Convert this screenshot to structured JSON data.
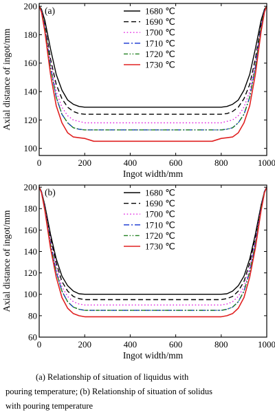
{
  "chart_data": [
    {
      "type": "line",
      "panel_label": "(a)",
      "xlabel": "Ingot width/mm",
      "ylabel": "Axial distance of ingot/mm",
      "xlim": [
        0,
        1000
      ],
      "ylim": [
        95,
        202
      ],
      "xticks": [
        0,
        200,
        400,
        600,
        800,
        1000
      ],
      "yticks": [
        100,
        120,
        140,
        160,
        180,
        200
      ],
      "legend_position": "top-right",
      "series": [
        {
          "name": "1680 ℃",
          "color": "#000000",
          "dash": "solid",
          "x": [
            0,
            10,
            25,
            50,
            75,
            100,
            125,
            150,
            175,
            200,
            300,
            400,
            500,
            600,
            700,
            800,
            825,
            850,
            875,
            900,
            925,
            950,
            975,
            990,
            1000
          ],
          "y": [
            200,
            198,
            190,
            170,
            152,
            141,
            134,
            131,
            129.5,
            129,
            129,
            129,
            129,
            129,
            129,
            129,
            129.5,
            131,
            134,
            141,
            152,
            170,
            190,
            198,
            200
          ]
        },
        {
          "name": "1690 ℃",
          "color": "#000000",
          "dash": "dashed",
          "x": [
            0,
            10,
            25,
            50,
            75,
            100,
            125,
            150,
            175,
            200,
            300,
            400,
            500,
            600,
            700,
            800,
            825,
            850,
            875,
            900,
            925,
            950,
            975,
            990,
            1000
          ],
          "y": [
            200,
            197,
            187,
            163,
            145,
            135,
            129,
            126,
            124.5,
            124,
            124,
            124,
            124,
            124,
            124,
            124,
            124.5,
            126,
            129,
            135,
            145,
            163,
            187,
            197,
            200
          ]
        },
        {
          "name": "1700 ℃",
          "color": "#e020e0",
          "dash": "dotted",
          "x": [
            0,
            10,
            25,
            50,
            75,
            100,
            125,
            150,
            175,
            200,
            300,
            400,
            500,
            600,
            700,
            800,
            825,
            850,
            875,
            900,
            925,
            950,
            975,
            990,
            1000
          ],
          "y": [
            200,
            197,
            186,
            160,
            140,
            129,
            123,
            120,
            119,
            118,
            118,
            118,
            118,
            118,
            118,
            118,
            119,
            120,
            123,
            129,
            140,
            160,
            186,
            197,
            200
          ]
        },
        {
          "name": "1710 ℃",
          "color": "#1030d0",
          "dash": "dashdot",
          "x": [
            0,
            10,
            25,
            50,
            75,
            100,
            125,
            150,
            175,
            200,
            300,
            400,
            500,
            600,
            700,
            800,
            825,
            850,
            875,
            900,
            925,
            950,
            975,
            990,
            1000
          ],
          "y": [
            200,
            197,
            185,
            157,
            136,
            124,
            118,
            114.5,
            113.5,
            113,
            113,
            113,
            113,
            113,
            113,
            113,
            113.5,
            114.5,
            118,
            124,
            136,
            157,
            185,
            197,
            200
          ]
        },
        {
          "name": "1720 ℃",
          "color": "#208020",
          "dash": "dashdotdot",
          "x": [
            0,
            10,
            25,
            50,
            75,
            100,
            125,
            150,
            175,
            200,
            300,
            400,
            500,
            600,
            700,
            800,
            825,
            850,
            875,
            900,
            925,
            950,
            975,
            990,
            1000
          ],
          "y": [
            200,
            197,
            185,
            157,
            136,
            124,
            118,
            114.5,
            113.5,
            113,
            113,
            113,
            113,
            113,
            113,
            113,
            113.5,
            114.5,
            118,
            124,
            136,
            157,
            185,
            197,
            200
          ]
        },
        {
          "name": "1730 ℃",
          "color": "#e02020",
          "dash": "solid",
          "x": [
            0,
            10,
            25,
            50,
            75,
            100,
            125,
            150,
            175,
            200,
            240,
            300,
            400,
            500,
            600,
            700,
            760,
            800,
            825,
            850,
            875,
            900,
            925,
            950,
            975,
            990,
            1000
          ],
          "y": [
            200,
            196,
            182,
            152,
            130,
            118,
            111,
            108,
            107.5,
            107,
            105,
            105,
            105,
            105,
            105,
            105,
            105,
            107,
            107.5,
            108,
            111,
            118,
            130,
            152,
            182,
            196,
            200
          ]
        }
      ]
    },
    {
      "type": "line",
      "panel_label": "(b)",
      "xlabel": "Ingot width/mm",
      "ylabel": "Axial distance of ingot/mm",
      "xlim": [
        0,
        1000
      ],
      "ylim": [
        60,
        202
      ],
      "xticks": [
        0,
        200,
        400,
        600,
        800,
        1000
      ],
      "yticks": [
        60,
        80,
        100,
        120,
        140,
        160,
        180,
        200
      ],
      "legend_position": "top-right",
      "series": [
        {
          "name": "1680 ℃",
          "color": "#000000",
          "dash": "solid",
          "x": [
            0,
            10,
            25,
            50,
            75,
            100,
            125,
            150,
            175,
            200,
            300,
            400,
            500,
            600,
            700,
            800,
            825,
            850,
            875,
            900,
            925,
            950,
            975,
            990,
            1000
          ],
          "y": [
            200,
            196,
            183,
            156,
            133,
            117,
            108,
            103,
            100.5,
            100,
            100,
            100,
            100,
            100,
            100,
            100,
            100.5,
            103,
            108,
            117,
            133,
            156,
            183,
            196,
            200
          ]
        },
        {
          "name": "1690 ℃",
          "color": "#000000",
          "dash": "dashed",
          "x": [
            0,
            10,
            25,
            50,
            75,
            100,
            125,
            150,
            175,
            200,
            300,
            400,
            500,
            600,
            700,
            800,
            825,
            850,
            875,
            900,
            925,
            950,
            975,
            990,
            1000
          ],
          "y": [
            200,
            196,
            182,
            153,
            129,
            112,
            103,
            98,
            96,
            95,
            95,
            95,
            95,
            95,
            95,
            95,
            96,
            98,
            103,
            112,
            129,
            153,
            182,
            196,
            200
          ]
        },
        {
          "name": "1700 ℃",
          "color": "#e020e0",
          "dash": "dotted",
          "x": [
            0,
            10,
            25,
            50,
            75,
            100,
            125,
            150,
            175,
            200,
            300,
            400,
            500,
            600,
            700,
            800,
            825,
            850,
            875,
            900,
            925,
            950,
            975,
            990,
            1000
          ],
          "y": [
            200,
            196,
            181,
            150,
            125,
            107,
            98,
            93,
            91,
            90,
            90,
            90,
            90,
            90,
            90,
            90,
            91,
            93,
            98,
            107,
            125,
            150,
            181,
            196,
            200
          ]
        },
        {
          "name": "1710 ℃",
          "color": "#1030d0",
          "dash": "dashdot",
          "x": [
            0,
            10,
            25,
            50,
            75,
            100,
            125,
            150,
            175,
            200,
            300,
            400,
            500,
            600,
            700,
            800,
            825,
            850,
            875,
            900,
            925,
            950,
            975,
            990,
            1000
          ],
          "y": [
            200,
            196,
            180,
            147,
            121,
            103,
            93,
            88,
            86,
            85,
            85,
            85,
            85,
            85,
            85,
            85,
            86,
            88,
            93,
            103,
            121,
            147,
            180,
            196,
            200
          ]
        },
        {
          "name": "1720 ℃",
          "color": "#208020",
          "dash": "dashdotdot",
          "x": [
            0,
            10,
            25,
            50,
            75,
            100,
            125,
            150,
            175,
            200,
            300,
            400,
            500,
            600,
            700,
            800,
            825,
            850,
            875,
            900,
            925,
            950,
            975,
            990,
            1000
          ],
          "y": [
            200,
            196,
            180,
            147,
            121,
            103,
            93,
            88,
            86,
            85,
            85,
            85,
            85,
            85,
            85,
            85,
            86,
            88,
            93,
            103,
            121,
            147,
            180,
            196,
            200
          ]
        },
        {
          "name": "1730 ℃",
          "color": "#e02020",
          "dash": "solid",
          "x": [
            0,
            10,
            25,
            50,
            75,
            100,
            125,
            150,
            175,
            200,
            300,
            400,
            500,
            600,
            700,
            800,
            825,
            850,
            875,
            900,
            925,
            950,
            975,
            990,
            1000
          ],
          "y": [
            200,
            195,
            178,
            143,
            116,
            97,
            87,
            82,
            80,
            79,
            79,
            79,
            79,
            79,
            79,
            79,
            80,
            82,
            87,
            97,
            116,
            143,
            178,
            195,
            200
          ]
        }
      ]
    }
  ],
  "caption": {
    "line1": "(a) Relationship of situation of liquidus with",
    "line2": "pouring temperature; (b) Relationship of situation of solidus",
    "line3": "with pouring temperature"
  }
}
